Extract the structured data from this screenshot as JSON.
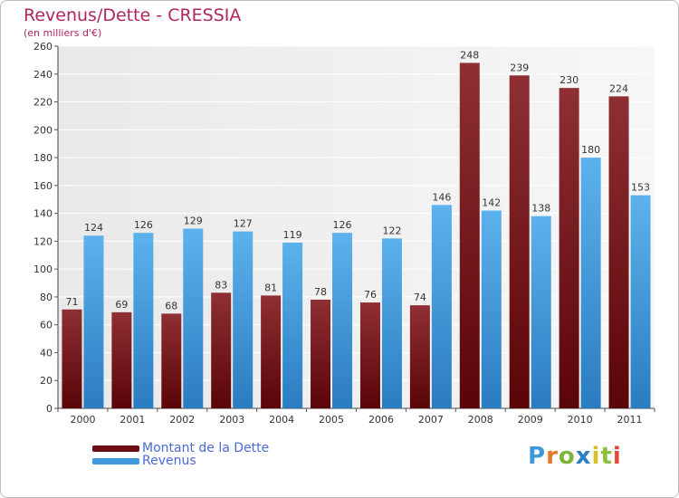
{
  "title": "Revenus/Dette - CRESSIA",
  "subtitle": "(en milliers d'€)",
  "logo": {
    "letters": [
      "P",
      "r",
      "o",
      "x",
      "i",
      "t",
      "i"
    ],
    "colors": [
      "#3e9ad6",
      "#e8762b",
      "#7fb33a",
      "#2b7fc4",
      "#d6c22e",
      "#8fbf3a",
      "#e04b3a"
    ]
  },
  "legend": [
    {
      "name": "Montant de la Dette",
      "color": "#6b0f14"
    },
    {
      "name": "Revenus",
      "color": "#3f99de"
    }
  ],
  "chart_data": {
    "type": "bar",
    "title": "Revenus/Dette - CRESSIA",
    "xlabel": "",
    "ylabel": "",
    "ylim": [
      0,
      260
    ],
    "ytick_step": 20,
    "grid": true,
    "legend_position": "bottom-left",
    "categories": [
      "2000",
      "2001",
      "2002",
      "2003",
      "2004",
      "2005",
      "2006",
      "2007",
      "2008",
      "2009",
      "2010",
      "2011"
    ],
    "series": [
      {
        "name": "Montant de la Dette",
        "values": [
          71,
          69,
          68,
          83,
          81,
          78,
          76,
          74,
          248,
          239,
          230,
          224
        ],
        "color_top": "#8e2f33",
        "color_bottom": "#5a0508"
      },
      {
        "name": "Revenus",
        "values": [
          124,
          126,
          129,
          127,
          119,
          126,
          122,
          146,
          142,
          138,
          180,
          153
        ],
        "color_top": "#5cb2ec",
        "color_bottom": "#2a7cc0"
      }
    ]
  }
}
